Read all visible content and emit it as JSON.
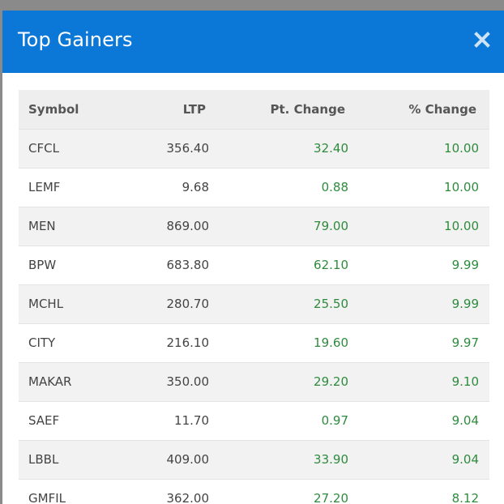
{
  "modal": {
    "title": "Top Gainers",
    "close_label": "Close",
    "colors": {
      "header": "#0b78d8",
      "gain": "#2e8b3d"
    }
  },
  "table": {
    "headers": [
      "Symbol",
      "LTP",
      "Pt. Change",
      "% Change"
    ],
    "rows": [
      {
        "symbol": "CFCL",
        "ltp": "356.40",
        "pt_change": "32.40",
        "pct_change": "10.00"
      },
      {
        "symbol": "LEMF",
        "ltp": "9.68",
        "pt_change": "0.88",
        "pct_change": "10.00"
      },
      {
        "symbol": "MEN",
        "ltp": "869.00",
        "pt_change": "79.00",
        "pct_change": "10.00"
      },
      {
        "symbol": "BPW",
        "ltp": "683.80",
        "pt_change": "62.10",
        "pct_change": "9.99"
      },
      {
        "symbol": "MCHL",
        "ltp": "280.70",
        "pt_change": "25.50",
        "pct_change": "9.99"
      },
      {
        "symbol": "CITY",
        "ltp": "216.10",
        "pt_change": "19.60",
        "pct_change": "9.97"
      },
      {
        "symbol": "MAKAR",
        "ltp": "350.00",
        "pt_change": "29.20",
        "pct_change": "9.10"
      },
      {
        "symbol": "SAEF",
        "ltp": "11.70",
        "pt_change": "0.97",
        "pct_change": "9.04"
      },
      {
        "symbol": "LBBL",
        "ltp": "409.00",
        "pt_change": "33.90",
        "pct_change": "9.04"
      },
      {
        "symbol": "GMFIL",
        "ltp": "362.00",
        "pt_change": "27.20",
        "pct_change": "8.12"
      }
    ]
  }
}
